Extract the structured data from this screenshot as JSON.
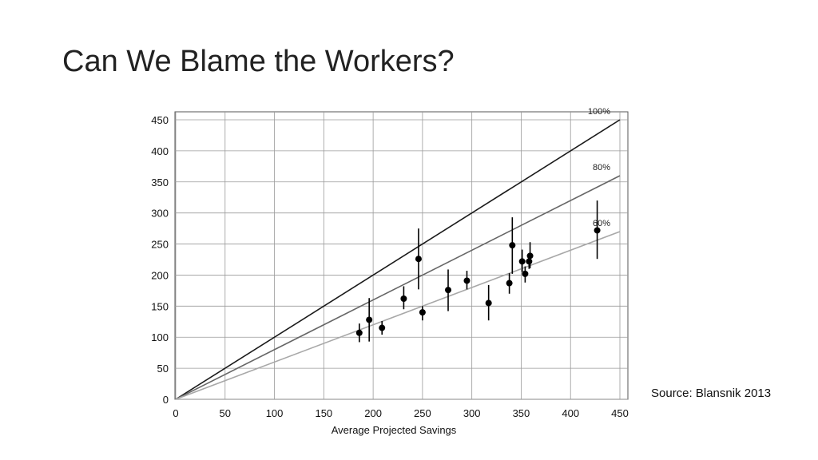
{
  "slide": {
    "title": "Can We Blame the Workers?",
    "source": "Source: Blansnik 2013"
  },
  "chart_data": {
    "type": "scatter",
    "xlabel": "Average Projected Savings",
    "ylabel": "",
    "xlim": [
      0,
      450
    ],
    "ylim": [
      0,
      450
    ],
    "xticks": [
      0,
      50,
      100,
      150,
      200,
      250,
      300,
      350,
      400,
      450
    ],
    "yticks": [
      0,
      50,
      100,
      150,
      200,
      250,
      300,
      350,
      400,
      450
    ],
    "grid": true,
    "reference_lines": [
      {
        "label": "100%",
        "slope": 1.0,
        "color": "#1a1a1a"
      },
      {
        "label": "80%",
        "slope": 0.8,
        "color": "#666666"
      },
      {
        "label": "60%",
        "slope": 0.6,
        "color": "#a8a8a8"
      }
    ],
    "points": [
      {
        "x": 186,
        "y": 107,
        "ylow": 92,
        "yhigh": 122
      },
      {
        "x": 196,
        "y": 128,
        "ylow": 93,
        "yhigh": 163
      },
      {
        "x": 209,
        "y": 115,
        "ylow": 104,
        "yhigh": 126
      },
      {
        "x": 231,
        "y": 162,
        "ylow": 145,
        "yhigh": 182
      },
      {
        "x": 246,
        "y": 226,
        "ylow": 177,
        "yhigh": 275
      },
      {
        "x": 250,
        "y": 140,
        "ylow": 127,
        "yhigh": 150
      },
      {
        "x": 276,
        "y": 176,
        "ylow": 142,
        "yhigh": 209
      },
      {
        "x": 295,
        "y": 191,
        "ylow": 177,
        "yhigh": 207
      },
      {
        "x": 317,
        "y": 155,
        "ylow": 127,
        "yhigh": 184
      },
      {
        "x": 338,
        "y": 187,
        "ylow": 170,
        "yhigh": 203
      },
      {
        "x": 341,
        "y": 248,
        "ylow": 202,
        "yhigh": 293
      },
      {
        "x": 351,
        "y": 222,
        "ylow": 205,
        "yhigh": 241
      },
      {
        "x": 354,
        "y": 202,
        "ylow": 188,
        "yhigh": 214
      },
      {
        "x": 358,
        "y": 222,
        "ylow": 210,
        "yhigh": 235
      },
      {
        "x": 359,
        "y": 231,
        "ylow": 211,
        "yhigh": 253
      },
      {
        "x": 427,
        "y": 272,
        "ylow": 226,
        "yhigh": 320
      }
    ]
  }
}
